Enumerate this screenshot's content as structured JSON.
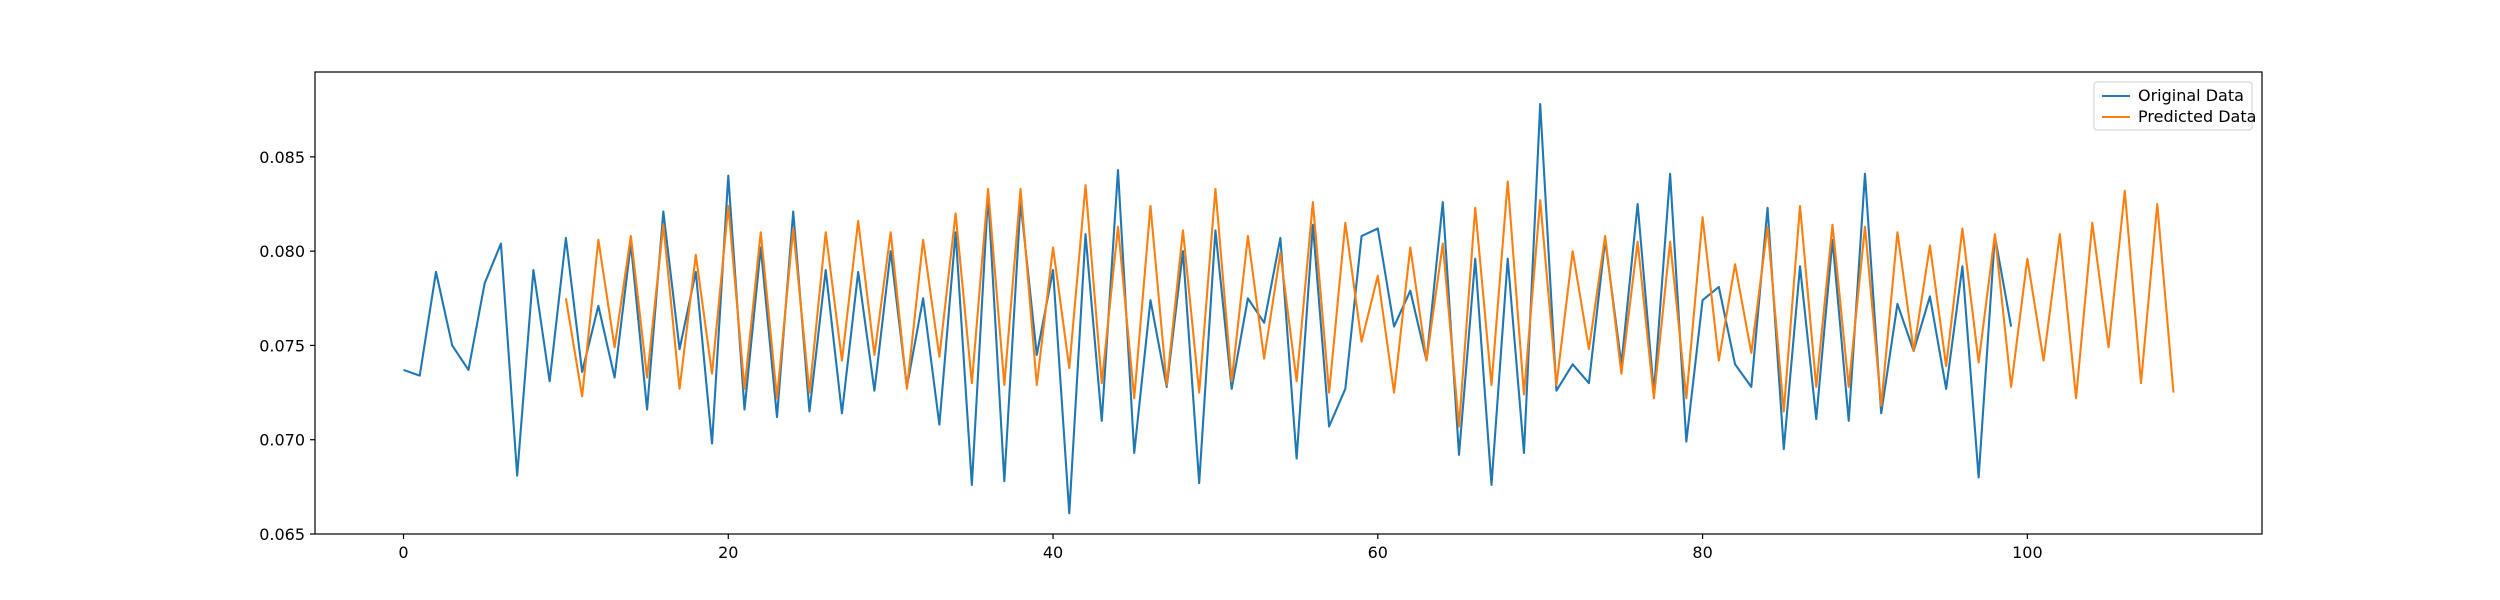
{
  "chart_data": {
    "type": "line",
    "title": "",
    "xlabel": "",
    "ylabel": "",
    "xlim": [
      -5.45,
      114.45
    ],
    "ylim": [
      0.065,
      0.0895
    ],
    "xticks": [
      0,
      20,
      40,
      60,
      80,
      100
    ],
    "yticks": [
      0.065,
      0.07,
      0.075,
      0.08,
      0.085
    ],
    "ytick_labels": [
      "0.065",
      "0.070",
      "0.075",
      "0.080",
      "0.085"
    ],
    "xtick_labels": [
      "0",
      "20",
      "40",
      "60",
      "80",
      "100"
    ],
    "grid": false,
    "legend_position": "top-right",
    "series": [
      {
        "name": "Original Data",
        "color": "#1f77b4",
        "x_start": 0,
        "values": [
          0.0737,
          0.0734,
          0.0789,
          0.075,
          0.0737,
          0.0783,
          0.0804,
          0.0681,
          0.079,
          0.0731,
          0.0807,
          0.0736,
          0.0771,
          0.0733,
          0.0804,
          0.0716,
          0.0821,
          0.0748,
          0.0789,
          0.0698,
          0.084,
          0.0716,
          0.0802,
          0.0712,
          0.0821,
          0.0715,
          0.079,
          0.0714,
          0.0789,
          0.0726,
          0.08,
          0.0728,
          0.0775,
          0.0708,
          0.081,
          0.0676,
          0.083,
          0.0678,
          0.0826,
          0.0745,
          0.079,
          0.0661,
          0.0809,
          0.071,
          0.0843,
          0.0693,
          0.0774,
          0.0728,
          0.08,
          0.0677,
          0.0811,
          0.0727,
          0.0775,
          0.0762,
          0.0807,
          0.069,
          0.0814,
          0.0707,
          0.0727,
          0.0808,
          0.0812,
          0.076,
          0.0779,
          0.0742,
          0.0826,
          0.0692,
          0.0796,
          0.0676,
          0.0796,
          0.0693,
          0.0878,
          0.0726,
          0.074,
          0.073,
          0.0806,
          0.074,
          0.0825,
          0.0725,
          0.0841,
          0.0699,
          0.0774,
          0.0781,
          0.074,
          0.0728,
          0.0823,
          0.0695,
          0.0792,
          0.0711,
          0.0806,
          0.071,
          0.0841,
          0.0714,
          0.0772,
          0.0747,
          0.0776,
          0.0727,
          0.0792,
          0.068,
          0.0808,
          0.076
        ]
      },
      {
        "name": "Predicted Data",
        "color": "#ff7f0e",
        "x_start": 10,
        "values": [
          0.0775,
          0.0723,
          0.0806,
          0.0749,
          0.0808,
          0.0733,
          0.0814,
          0.0727,
          0.0798,
          0.0735,
          0.0824,
          0.0727,
          0.081,
          0.0722,
          0.0812,
          0.0725,
          0.081,
          0.0742,
          0.0816,
          0.0745,
          0.081,
          0.0727,
          0.0806,
          0.0744,
          0.082,
          0.073,
          0.0833,
          0.0729,
          0.0833,
          0.0729,
          0.0802,
          0.0738,
          0.0835,
          0.073,
          0.0813,
          0.0722,
          0.0824,
          0.0729,
          0.0811,
          0.0725,
          0.0833,
          0.0731,
          0.0808,
          0.0743,
          0.0799,
          0.0731,
          0.0826,
          0.0725,
          0.0815,
          0.0752,
          0.0787,
          0.0725,
          0.0802,
          0.0742,
          0.0804,
          0.0707,
          0.0823,
          0.0729,
          0.0837,
          0.0724,
          0.0827,
          0.0729,
          0.08,
          0.0748,
          0.0808,
          0.0735,
          0.0805,
          0.0722,
          0.0805,
          0.0722,
          0.0818,
          0.0742,
          0.0793,
          0.0746,
          0.0813,
          0.0715,
          0.0824,
          0.0728,
          0.0814,
          0.0728,
          0.0813,
          0.0718,
          0.081,
          0.0747,
          0.0803,
          0.0739,
          0.0812,
          0.0741,
          0.0809,
          0.0728,
          0.0796,
          0.0742,
          0.0809,
          0.0722,
          0.0815,
          0.0749,
          0.0832,
          0.073,
          0.0825,
          0.0725
        ]
      }
    ]
  }
}
